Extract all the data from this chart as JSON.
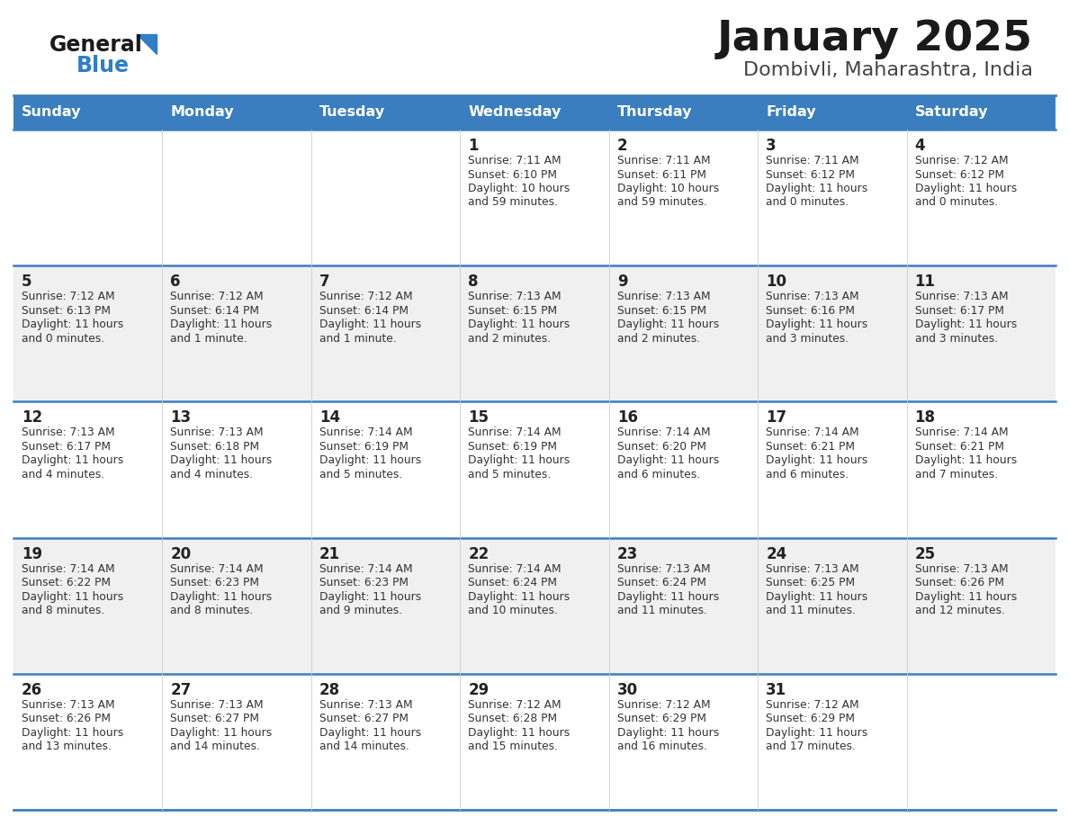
{
  "title": "January 2025",
  "subtitle": "Dombivli, Maharashtra, India",
  "days_of_week": [
    "Sunday",
    "Monday",
    "Tuesday",
    "Wednesday",
    "Thursday",
    "Friday",
    "Saturday"
  ],
  "header_bg": "#3a7ebf",
  "header_text": "#ffffff",
  "row_bg_even": "#ffffff",
  "row_bg_odd": "#f0f0f0",
  "cell_text": "#333333",
  "border_color": "#3a7ebf",
  "logo_general_color": "#1a1a1a",
  "logo_blue_color": "#2f7ec7",
  "calendar_data": [
    [
      null,
      null,
      null,
      {
        "day": 1,
        "sunrise": "7:11 AM",
        "sunset": "6:10 PM",
        "daylight_h": "10 hours",
        "daylight_m": "and 59 minutes."
      },
      {
        "day": 2,
        "sunrise": "7:11 AM",
        "sunset": "6:11 PM",
        "daylight_h": "10 hours",
        "daylight_m": "and 59 minutes."
      },
      {
        "day": 3,
        "sunrise": "7:11 AM",
        "sunset": "6:12 PM",
        "daylight_h": "11 hours",
        "daylight_m": "and 0 minutes."
      },
      {
        "day": 4,
        "sunrise": "7:12 AM",
        "sunset": "6:12 PM",
        "daylight_h": "11 hours",
        "daylight_m": "and 0 minutes."
      }
    ],
    [
      {
        "day": 5,
        "sunrise": "7:12 AM",
        "sunset": "6:13 PM",
        "daylight_h": "11 hours",
        "daylight_m": "and 0 minutes."
      },
      {
        "day": 6,
        "sunrise": "7:12 AM",
        "sunset": "6:14 PM",
        "daylight_h": "11 hours",
        "daylight_m": "and 1 minute."
      },
      {
        "day": 7,
        "sunrise": "7:12 AM",
        "sunset": "6:14 PM",
        "daylight_h": "11 hours",
        "daylight_m": "and 1 minute."
      },
      {
        "day": 8,
        "sunrise": "7:13 AM",
        "sunset": "6:15 PM",
        "daylight_h": "11 hours",
        "daylight_m": "and 2 minutes."
      },
      {
        "day": 9,
        "sunrise": "7:13 AM",
        "sunset": "6:15 PM",
        "daylight_h": "11 hours",
        "daylight_m": "and 2 minutes."
      },
      {
        "day": 10,
        "sunrise": "7:13 AM",
        "sunset": "6:16 PM",
        "daylight_h": "11 hours",
        "daylight_m": "and 3 minutes."
      },
      {
        "day": 11,
        "sunrise": "7:13 AM",
        "sunset": "6:17 PM",
        "daylight_h": "11 hours",
        "daylight_m": "and 3 minutes."
      }
    ],
    [
      {
        "day": 12,
        "sunrise": "7:13 AM",
        "sunset": "6:17 PM",
        "daylight_h": "11 hours",
        "daylight_m": "and 4 minutes."
      },
      {
        "day": 13,
        "sunrise": "7:13 AM",
        "sunset": "6:18 PM",
        "daylight_h": "11 hours",
        "daylight_m": "and 4 minutes."
      },
      {
        "day": 14,
        "sunrise": "7:14 AM",
        "sunset": "6:19 PM",
        "daylight_h": "11 hours",
        "daylight_m": "and 5 minutes."
      },
      {
        "day": 15,
        "sunrise": "7:14 AM",
        "sunset": "6:19 PM",
        "daylight_h": "11 hours",
        "daylight_m": "and 5 minutes."
      },
      {
        "day": 16,
        "sunrise": "7:14 AM",
        "sunset": "6:20 PM",
        "daylight_h": "11 hours",
        "daylight_m": "and 6 minutes."
      },
      {
        "day": 17,
        "sunrise": "7:14 AM",
        "sunset": "6:21 PM",
        "daylight_h": "11 hours",
        "daylight_m": "and 6 minutes."
      },
      {
        "day": 18,
        "sunrise": "7:14 AM",
        "sunset": "6:21 PM",
        "daylight_h": "11 hours",
        "daylight_m": "and 7 minutes."
      }
    ],
    [
      {
        "day": 19,
        "sunrise": "7:14 AM",
        "sunset": "6:22 PM",
        "daylight_h": "11 hours",
        "daylight_m": "and 8 minutes."
      },
      {
        "day": 20,
        "sunrise": "7:14 AM",
        "sunset": "6:23 PM",
        "daylight_h": "11 hours",
        "daylight_m": "and 8 minutes."
      },
      {
        "day": 21,
        "sunrise": "7:14 AM",
        "sunset": "6:23 PM",
        "daylight_h": "11 hours",
        "daylight_m": "and 9 minutes."
      },
      {
        "day": 22,
        "sunrise": "7:14 AM",
        "sunset": "6:24 PM",
        "daylight_h": "11 hours",
        "daylight_m": "and 10 minutes."
      },
      {
        "day": 23,
        "sunrise": "7:13 AM",
        "sunset": "6:24 PM",
        "daylight_h": "11 hours",
        "daylight_m": "and 11 minutes."
      },
      {
        "day": 24,
        "sunrise": "7:13 AM",
        "sunset": "6:25 PM",
        "daylight_h": "11 hours",
        "daylight_m": "and 11 minutes."
      },
      {
        "day": 25,
        "sunrise": "7:13 AM",
        "sunset": "6:26 PM",
        "daylight_h": "11 hours",
        "daylight_m": "and 12 minutes."
      }
    ],
    [
      {
        "day": 26,
        "sunrise": "7:13 AM",
        "sunset": "6:26 PM",
        "daylight_h": "11 hours",
        "daylight_m": "and 13 minutes."
      },
      {
        "day": 27,
        "sunrise": "7:13 AM",
        "sunset": "6:27 PM",
        "daylight_h": "11 hours",
        "daylight_m": "and 14 minutes."
      },
      {
        "day": 28,
        "sunrise": "7:13 AM",
        "sunset": "6:27 PM",
        "daylight_h": "11 hours",
        "daylight_m": "and 14 minutes."
      },
      {
        "day": 29,
        "sunrise": "7:12 AM",
        "sunset": "6:28 PM",
        "daylight_h": "11 hours",
        "daylight_m": "and 15 minutes."
      },
      {
        "day": 30,
        "sunrise": "7:12 AM",
        "sunset": "6:29 PM",
        "daylight_h": "11 hours",
        "daylight_m": "and 16 minutes."
      },
      {
        "day": 31,
        "sunrise": "7:12 AM",
        "sunset": "6:29 PM",
        "daylight_h": "11 hours",
        "daylight_m": "and 17 minutes."
      },
      null
    ]
  ]
}
